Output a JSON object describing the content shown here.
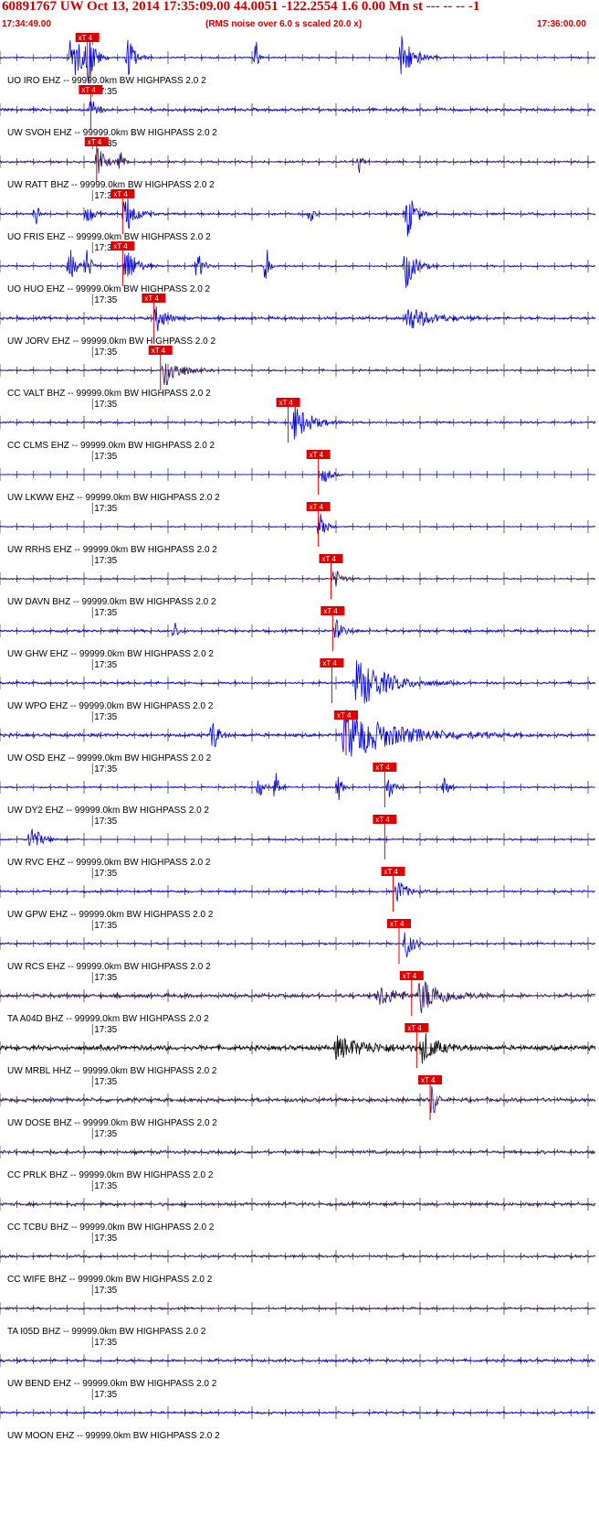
{
  "header": {
    "title": "60891767 UW Oct 13, 2014 17:35:09.00   44.0051 -122.2554  1.6 0.00 Mn st --- -- --  -1",
    "start_time": "17:34:49.00",
    "note": "(RMS noise over 6.0 s scaled 20.0 x)",
    "end_time": "17:36:00.00"
  },
  "minute_label": "17:35",
  "pick_label": "xT 4",
  "colors": {
    "blue": "#0000dd",
    "purple": "#2a1060",
    "black": "#000000",
    "pick": "#dd0000",
    "axis": "#000000"
  },
  "traces": [
    {
      "label": "UO IRO EHZ -- 99999.0km BW  HIGHPASS  2.0  2",
      "color": "blue",
      "pick_s": 10.4,
      "amp": 0.5,
      "bursts": [
        [
          8.5,
          1.2,
          3.5
        ],
        [
          10.5,
          0.6,
          4.0
        ],
        [
          15.3,
          0.7,
          3.0
        ],
        [
          30.5,
          0.3,
          2.2
        ],
        [
          47.8,
          1.2,
          3.2
        ]
      ],
      "gaps": []
    },
    {
      "label": "UW SVOH EHZ -- 99999.0km BW  HIGHPASS  2.0  2",
      "color": "blue",
      "pick_s": 10.8,
      "amp": 0.9,
      "bursts": [
        [
          10.9,
          0.6,
          1.8
        ]
      ],
      "gaps": []
    },
    {
      "label": "UW RATT BHZ -- 99999.0km BW  HIGHPASS  2.0  2",
      "color": "purple",
      "pick_s": 11.5,
      "amp": 0.7,
      "bursts": [
        [
          11.6,
          0.8,
          2.2
        ],
        [
          14.3,
          0.4,
          1.6
        ],
        [
          42.8,
          0.3,
          1.3
        ]
      ],
      "gaps": []
    },
    {
      "label": "UO FRIS EHZ -- 99999.0km BW  HIGHPASS  2.0  2",
      "color": "blue",
      "pick_s": 14.6,
      "amp": 0.7,
      "bursts": [
        [
          4.3,
          0.3,
          2.0
        ],
        [
          10.4,
          0.5,
          1.8
        ],
        [
          14.9,
          1.0,
          3.0
        ],
        [
          36.9,
          0.3,
          1.6
        ],
        [
          48.5,
          0.8,
          3.2
        ]
      ],
      "gaps": []
    },
    {
      "label": "UO HUO EHZ -- 99999.0km BW  HIGHPASS  2.0  2",
      "color": "blue",
      "pick_s": 14.6,
      "amp": 0.6,
      "bursts": [
        [
          8.3,
          0.6,
          2.5
        ],
        [
          10.3,
          0.5,
          2.2
        ],
        [
          15.0,
          1.0,
          3.0
        ],
        [
          23.5,
          0.6,
          2.0
        ],
        [
          31.7,
          0.3,
          3.0
        ],
        [
          48.3,
          1.0,
          3.0
        ]
      ],
      "gaps": []
    },
    {
      "label": "UW JORV EHZ -- 99999.0km BW  HIGHPASS  2.0  2",
      "color": "blue",
      "pick_s": 18.3,
      "amp": 0.9,
      "bursts": [
        [
          18.6,
          1.0,
          1.8
        ],
        [
          48.5,
          2.5,
          1.6
        ]
      ],
      "gaps": []
    },
    {
      "label": "CC VALT BHZ -- 99999.0km BW  HIGHPASS  2.0  2",
      "color": "purple",
      "pick_s": 19.1,
      "amp": 0.6,
      "bursts": [
        [
          19.6,
          1.5,
          2.4
        ]
      ],
      "gaps": []
    },
    {
      "label": "CC CLMS EHZ -- 99999.0km BW  HIGHPASS  2.0  2",
      "color": "blue",
      "pick_s": 34.3,
      "amp": 0.6,
      "bursts": [
        [
          35.0,
          1.8,
          2.4
        ]
      ],
      "gaps": []
    },
    {
      "label": "UW LKWW EHZ -- 99999.0km BW  HIGHPASS  2.0  2",
      "color": "blue",
      "pick_s": 37.9,
      "amp": 0.15,
      "bursts": [
        [
          38.5,
          0.8,
          1.3
        ]
      ],
      "gaps": []
    },
    {
      "label": "UW RRHS EHZ -- 99999.0km BW  HIGHPASS  2.0  2",
      "color": "blue",
      "pick_s": 37.9,
      "amp": 0.35,
      "bursts": [
        [
          38.1,
          0.5,
          3.0
        ]
      ],
      "gaps": []
    },
    {
      "label": "UW DAVN BHZ -- 99999.0km BW  HIGHPASS  2.0  2",
      "color": "purple",
      "pick_s": 39.4,
      "amp": 0.5,
      "bursts": [
        [
          39.8,
          0.8,
          1.4
        ]
      ],
      "gaps": []
    },
    {
      "label": "UW GHW EHZ -- 99999.0km BW  HIGHPASS  2.0  2",
      "color": "blue",
      "pick_s": 39.6,
      "amp": 0.8,
      "bursts": [
        [
          20.8,
          0.3,
          1.6
        ],
        [
          40.0,
          0.8,
          1.4
        ]
      ],
      "gaps": []
    },
    {
      "label": "UW WPO EHZ -- 99999.0km BW  HIGHPASS  2.0  2",
      "color": "blue",
      "pick_s": 39.5,
      "amp": 0.8,
      "bursts": [
        [
          42.5,
          3.0,
          3.5
        ]
      ],
      "gaps": []
    },
    {
      "label": "UW OSD EHZ -- 99999.0km BW  HIGHPASS  2.0  2",
      "color": "blue",
      "pick_s": 41.2,
      "amp": 1.0,
      "bursts": [
        [
          25.3,
          0.6,
          2.5
        ],
        [
          41.0,
          5.5,
          3.2
        ]
      ],
      "gaps": []
    },
    {
      "label": "UW DY2 EHZ -- 99999.0km BW  HIGHPASS  2.0  2",
      "color": "blue",
      "pick_s": 45.8,
      "amp": 0.5,
      "bursts": [
        [
          30.8,
          0.4,
          1.6
        ],
        [
          32.8,
          0.4,
          2.4
        ],
        [
          40.3,
          0.4,
          1.8
        ],
        [
          46.3,
          0.5,
          1.8
        ],
        [
          52.8,
          0.5,
          1.5
        ]
      ],
      "gaps": []
    },
    {
      "label": "UW RVC EHZ -- 99999.0km BW  HIGHPASS  2.0  2",
      "color": "blue",
      "pick_s": 45.8,
      "amp": 0.6,
      "bursts": [
        [
          3.6,
          1.0,
          2.2
        ]
      ],
      "gaps": [
        [
          9.8,
          24.8
        ]
      ]
    },
    {
      "label": "UW GPW EHZ -- 99999.0km BW  HIGHPASS  2.0  2",
      "color": "blue",
      "pick_s": 46.8,
      "amp": 0.7,
      "bursts": [
        [
          47.3,
          1.0,
          1.7
        ]
      ],
      "gaps": []
    },
    {
      "label": "UW RCS EHZ -- 99999.0km BW  HIGHPASS  2.0  2",
      "color": "blue",
      "pick_s": 47.5,
      "amp": 0.6,
      "bursts": [
        [
          48.3,
          0.8,
          2.2
        ]
      ],
      "gaps": []
    },
    {
      "label": "TA A04D BHZ -- 99999.0km BW  HIGHPASS  2.0  2",
      "color": "purple",
      "pick_s": 49.0,
      "amp": 1.2,
      "bursts": [
        [
          50.0,
          2.5,
          2.2
        ],
        [
          45.0,
          2.0,
          1.4
        ]
      ],
      "gaps": []
    },
    {
      "label": "UW MRBL HHZ -- 99999.0km BW  HIGHPASS  2.0  2",
      "color": "black",
      "pick_s": 49.6,
      "amp": 1.5,
      "bursts": [
        [
          50.3,
          1.5,
          2.0
        ],
        [
          40.0,
          4.0,
          1.3
        ]
      ],
      "gaps": []
    },
    {
      "label": "UW DOSE BHZ -- 99999.0km BW  HIGHPASS  2.0  2",
      "color": "purple",
      "pick_s": 51.2,
      "amp": 1.2,
      "bursts": [
        [
          51.5,
          0.4,
          3.0
        ]
      ],
      "gaps": []
    },
    {
      "label": "CC PRLK BHZ -- 99999.0km BW  HIGHPASS  2.0  2",
      "color": "purple",
      "pick_s": null,
      "amp": 1.0,
      "bursts": [],
      "gaps": []
    },
    {
      "label": "CC TCBU BHZ -- 99999.0km BW  HIGHPASS  2.0  2",
      "color": "purple",
      "pick_s": null,
      "amp": 1.0,
      "bursts": [],
      "gaps": []
    },
    {
      "label": "CC WIFE BHZ -- 99999.0km BW  HIGHPASS  2.0  2",
      "color": "purple",
      "pick_s": null,
      "amp": 0.8,
      "bursts": [],
      "gaps": []
    },
    {
      "label": "TA I05D BHZ -- 99999.0km BW  HIGHPASS  2.0  2",
      "color": "purple",
      "pick_s": null,
      "amp": 0.7,
      "bursts": [],
      "gaps": []
    },
    {
      "label": "UW BEND EHZ -- 99999.0km BW  HIGHPASS  2.0  2",
      "color": "blue",
      "pick_s": null,
      "amp": 0.9,
      "bursts": [],
      "gaps": []
    },
    {
      "label": "UW MOON EHZ -- 99999.0km BW  HIGHPASS  2.0  2",
      "color": "blue",
      "pick_s": null,
      "amp": 0.7,
      "bursts": [],
      "gaps": []
    }
  ]
}
